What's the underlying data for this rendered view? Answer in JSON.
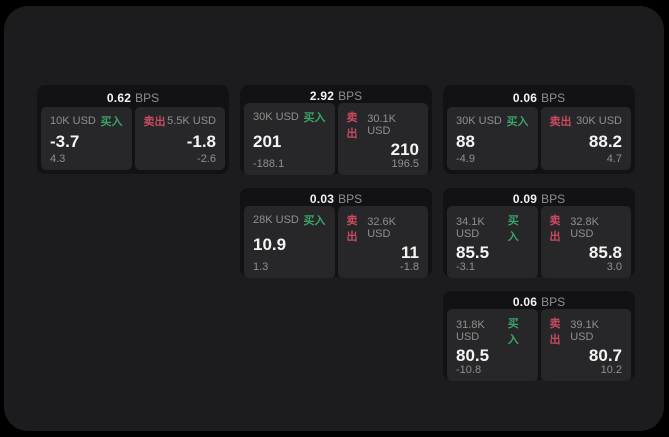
{
  "page": {
    "background": "#000000",
    "panel_background": "#1c1c1e"
  },
  "colors": {
    "buy_green": "#3ba368",
    "sell_red": "#c84a5f",
    "value_white": "#f4f4f4",
    "muted_gray": "#8f8f8f",
    "card_bg": "#121214",
    "cell_bg": "#272729"
  },
  "labels": {
    "bps": "BPS",
    "buy": "买入",
    "sell": "卖出"
  },
  "cards": [
    {
      "bps": "0.62",
      "row": 1,
      "col": 1,
      "buy": {
        "amount": "10K USD",
        "value": "-3.7",
        "change": "4.3"
      },
      "sell": {
        "amount": "5.5K USD",
        "value": "-1.8",
        "change": "-2.6"
      }
    },
    {
      "bps": "2.92",
      "row": 1,
      "col": 2,
      "buy": {
        "amount": "30K USD",
        "value": "201",
        "change": "-188.1"
      },
      "sell": {
        "amount": "30.1K USD",
        "value": "210",
        "change": "196.5"
      }
    },
    {
      "bps": "0.06",
      "row": 1,
      "col": 3,
      "buy": {
        "amount": "30K USD",
        "value": "88",
        "change": "-4.9"
      },
      "sell": {
        "amount": "30K USD",
        "value": "88.2",
        "change": "4.7"
      }
    },
    {
      "bps": "0.03",
      "row": 2,
      "col": 2,
      "buy": {
        "amount": "28K USD",
        "value": "10.9",
        "change": "1.3"
      },
      "sell": {
        "amount": "32.6K USD",
        "value": "11",
        "change": "-1.8"
      }
    },
    {
      "bps": "0.09",
      "row": 2,
      "col": 3,
      "buy": {
        "amount": "34.1K USD",
        "value": "85.5",
        "change": "-3.1"
      },
      "sell": {
        "amount": "32.8K USD",
        "value": "85.8",
        "change": "3.0"
      }
    },
    {
      "bps": "0.06",
      "row": 3,
      "col": 3,
      "buy": {
        "amount": "31.8K USD",
        "value": "80.5",
        "change": "-10.8"
      },
      "sell": {
        "amount": "39.1K USD",
        "value": "80.7",
        "change": "10.2"
      }
    }
  ]
}
